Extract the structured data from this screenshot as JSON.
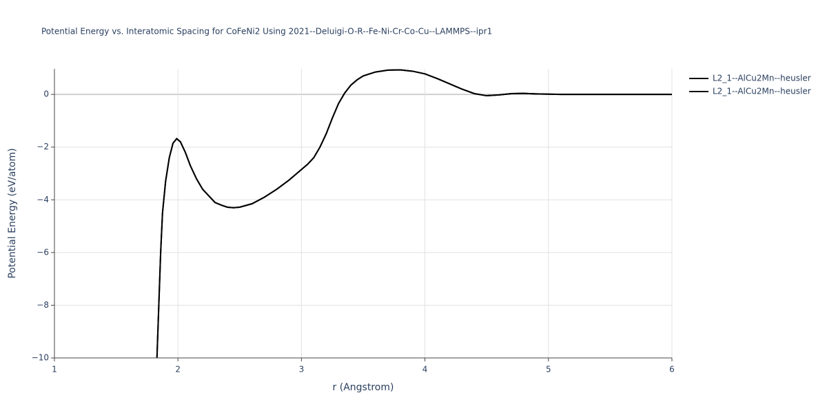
{
  "chart_data": {
    "type": "line",
    "title": "Potential Energy vs. Interatomic Spacing for CoFeNi2 Using 2021--Deluigi-O-R--Fe-Ni-Cr-Co-Cu--LAMMPS--ipr1",
    "x_label": "r (Angstrom)",
    "y_label": "Potential Energy (eV/atom)",
    "x": [
      1.83,
      1.845,
      1.86,
      1.875,
      1.9,
      1.93,
      1.96,
      1.99,
      2.02,
      2.06,
      2.1,
      2.15,
      2.2,
      2.25,
      2.3,
      2.35,
      2.4,
      2.45,
      2.5,
      2.6,
      2.7,
      2.8,
      2.9,
      3.0,
      3.05,
      3.1,
      3.15,
      3.2,
      3.25,
      3.3,
      3.35,
      3.4,
      3.45,
      3.5,
      3.6,
      3.7,
      3.8,
      3.9,
      4.0,
      4.1,
      4.2,
      4.3,
      4.4,
      4.5,
      4.6,
      4.7,
      4.8,
      4.9,
      5.0,
      5.1,
      5.5,
      6.0
    ],
    "series": [
      {
        "name": "L2_1--AlCu2Mn--heusler",
        "color": "#000000",
        "values": [
          -10,
          -8,
          -6,
          -4.5,
          -3.3,
          -2.4,
          -1.85,
          -1.68,
          -1.8,
          -2.2,
          -2.7,
          -3.2,
          -3.6,
          -3.85,
          -4.1,
          -4.2,
          -4.28,
          -4.3,
          -4.28,
          -4.15,
          -3.9,
          -3.6,
          -3.25,
          -2.85,
          -2.65,
          -2.4,
          -2.0,
          -1.5,
          -0.9,
          -0.35,
          0.05,
          0.35,
          0.55,
          0.7,
          0.85,
          0.92,
          0.93,
          0.88,
          0.78,
          0.6,
          0.4,
          0.2,
          0.03,
          -0.05,
          -0.02,
          0.03,
          0.04,
          0.02,
          0.01,
          0,
          0,
          0
        ]
      },
      {
        "name": "L2_1--AlCu2Mn--heusler",
        "color": "#000000",
        "values": [
          -10,
          -8,
          -6,
          -4.5,
          -3.3,
          -2.4,
          -1.85,
          -1.68,
          -1.8,
          -2.2,
          -2.7,
          -3.2,
          -3.6,
          -3.85,
          -4.1,
          -4.2,
          -4.28,
          -4.3,
          -4.28,
          -4.15,
          -3.9,
          -3.6,
          -3.25,
          -2.85,
          -2.65,
          -2.4,
          -2.0,
          -1.5,
          -0.9,
          -0.35,
          0.05,
          0.35,
          0.55,
          0.7,
          0.85,
          0.92,
          0.93,
          0.88,
          0.78,
          0.6,
          0.4,
          0.2,
          0.03,
          -0.05,
          -0.02,
          0.03,
          0.04,
          0.02,
          0.01,
          0,
          0,
          0
        ]
      }
    ],
    "xlim": [
      1,
      6
    ],
    "xticks": [
      1,
      2,
      3,
      4,
      5,
      6
    ],
    "ylim": [
      -10,
      0.97
    ],
    "yticks": [
      {
        "value": -10,
        "label": "−10"
      },
      {
        "value": -8,
        "label": "−8"
      },
      {
        "value": -6,
        "label": "−6"
      },
      {
        "value": -4,
        "label": "−4"
      },
      {
        "value": -2,
        "label": "−2"
      },
      0
    ],
    "grid": true,
    "legend": "outside-right"
  }
}
